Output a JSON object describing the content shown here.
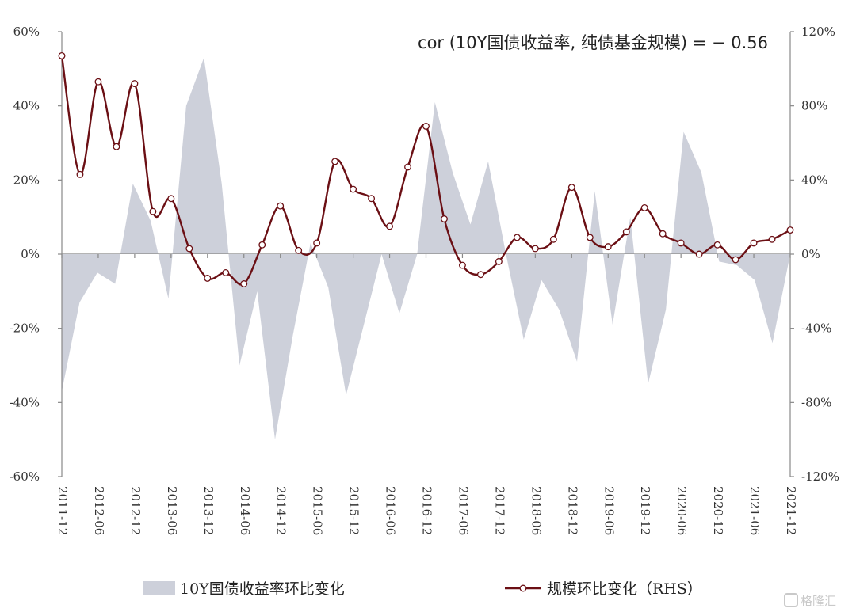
{
  "chart_data": {
    "type": "area+line",
    "annotation": "cor (10Y国债收益率, 纯债基金规模) = − 0.56",
    "left_axis": {
      "ylim": [
        -60,
        60
      ],
      "ticks": [
        -60,
        -40,
        -20,
        0,
        20,
        40,
        60
      ],
      "tick_labels": [
        "-60%",
        "-40%",
        "-20%",
        "0%",
        "20%",
        "40%",
        "60%"
      ]
    },
    "right_axis": {
      "ylim": [
        -120,
        120
      ],
      "ticks": [
        -120,
        -80,
        -40,
        0,
        40,
        80,
        120
      ],
      "tick_labels": [
        "-120%",
        "-80%",
        "-40%",
        "0%",
        "40%",
        "80%",
        "120%"
      ]
    },
    "x_tick_labels": [
      "2011-12",
      "2012-06",
      "2012-12",
      "2013-06",
      "2013-12",
      "2014-06",
      "2014-12",
      "2015-06",
      "2015-12",
      "2016-06",
      "2016-12",
      "2017-06",
      "2017-12",
      "2018-06",
      "2018-12",
      "2019-06",
      "2019-12",
      "2020-06",
      "2020-12",
      "2021-06",
      "2021-12"
    ],
    "area_series": {
      "name": "10Y国债收益率环比变化",
      "color": "#cdd0da",
      "values": [
        -37,
        -13,
        -5,
        -8,
        19,
        9,
        -12,
        40,
        53,
        19,
        -30,
        -10,
        -50,
        -22,
        3,
        -9,
        -38,
        -19,
        0,
        -16,
        0,
        41,
        22,
        8,
        25,
        0,
        -23,
        -7,
        -15,
        -29,
        17,
        -19,
        10,
        -35,
        -15,
        33,
        22,
        -2,
        -3,
        -7,
        -24,
        0
      ]
    },
    "line_series": {
      "name": "规模环比变化（RHS）",
      "color": "#6b0f14",
      "values": [
        107,
        43,
        93,
        58,
        92,
        23,
        30,
        3,
        -13,
        -10,
        -16,
        5,
        26,
        2,
        6,
        50,
        35,
        30,
        15,
        47,
        69,
        19,
        -6,
        -11,
        -4,
        9,
        3,
        8,
        36,
        9,
        4,
        12,
        25,
        11,
        6,
        0,
        5,
        -3,
        6,
        8,
        13
      ]
    },
    "legend": {
      "position": "bottom"
    },
    "grid": false
  },
  "watermark": {
    "text": "格隆汇"
  }
}
